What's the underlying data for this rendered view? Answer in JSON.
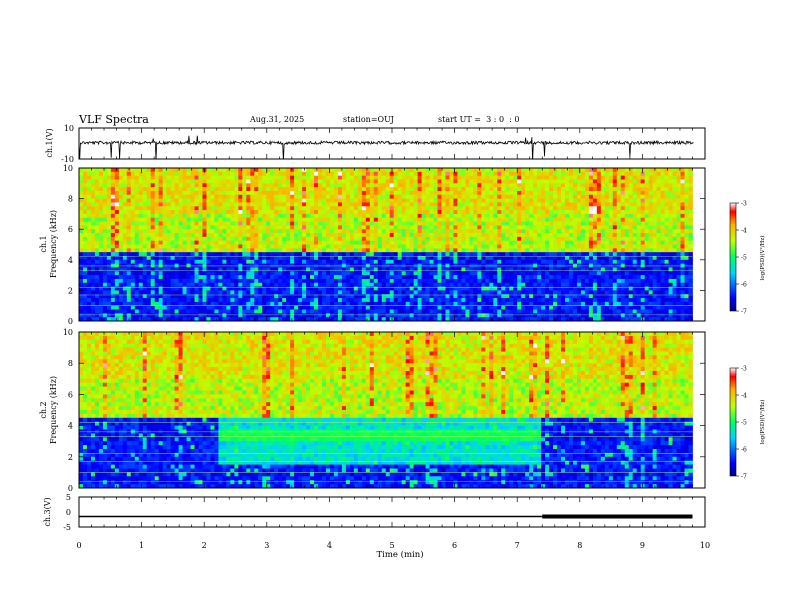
{
  "header": {
    "title": "VLF Spectra",
    "date": "Aug.31, 2025",
    "station": "station=OUJ",
    "start": "start UT =  3 : 0  : 0"
  },
  "chart_data": [
    {
      "type": "line",
      "panel": "ch1-waveform",
      "ylabel": "ch.1(V)",
      "ylim": [
        -10,
        10
      ],
      "yticks": [
        "10",
        "-10"
      ],
      "xlim": [
        0,
        10
      ],
      "baseline": 0.5,
      "note_shape": "noisy waveform with frequent negative spikes"
    },
    {
      "type": "heatmap",
      "panel": "ch1-spectrogram",
      "ylabel_top": "ch.1",
      "ylabel": "Frequency (kHz)",
      "ylim": [
        0,
        10
      ],
      "yticks": [
        "0",
        "2",
        "4",
        "6",
        "8",
        "10"
      ],
      "xlim": [
        0,
        9.8
      ],
      "colorbar_label": "log(PSD)(V²/Hz)",
      "colorbar_ticks": [
        "-3",
        "-4",
        "-5",
        "-6",
        "-7"
      ],
      "colorbar_range": [
        -7,
        -3
      ],
      "high_band_kHz": [
        4.5,
        10
      ],
      "low_level": -6.5,
      "high_level": -4.0
    },
    {
      "type": "heatmap",
      "panel": "ch2-spectrogram",
      "ylabel_top": "ch.2",
      "ylabel": "Frequency (kHz)",
      "ylim": [
        0,
        10
      ],
      "yticks": [
        "0",
        "2",
        "4",
        "6",
        "8",
        "10"
      ],
      "xlim": [
        0,
        9.8
      ],
      "colorbar_label": "log(PSD)(V²/Hz)",
      "colorbar_ticks": [
        "-3",
        "-4",
        "-5",
        "-6",
        "-7"
      ],
      "colorbar_range": [
        -7,
        -3
      ],
      "enhanced_interval_min": [
        2.2,
        7.4
      ],
      "enhanced_band_kHz": [
        3.0,
        3.8
      ]
    },
    {
      "type": "line",
      "panel": "ch3-level",
      "ylabel": "ch.3(V)",
      "ylim": [
        -5,
        5
      ],
      "yticks": [
        "5",
        "0",
        "-5"
      ],
      "xlim": [
        0,
        10
      ],
      "level": -1.5,
      "thick_from_min": 7.4,
      "thick_to_min": 9.8
    }
  ],
  "x_axis": {
    "label": "Time (min)",
    "ticks": [
      "0",
      "1",
      "2",
      "3",
      "4",
      "5",
      "6",
      "7",
      "8",
      "9",
      "10"
    ]
  }
}
